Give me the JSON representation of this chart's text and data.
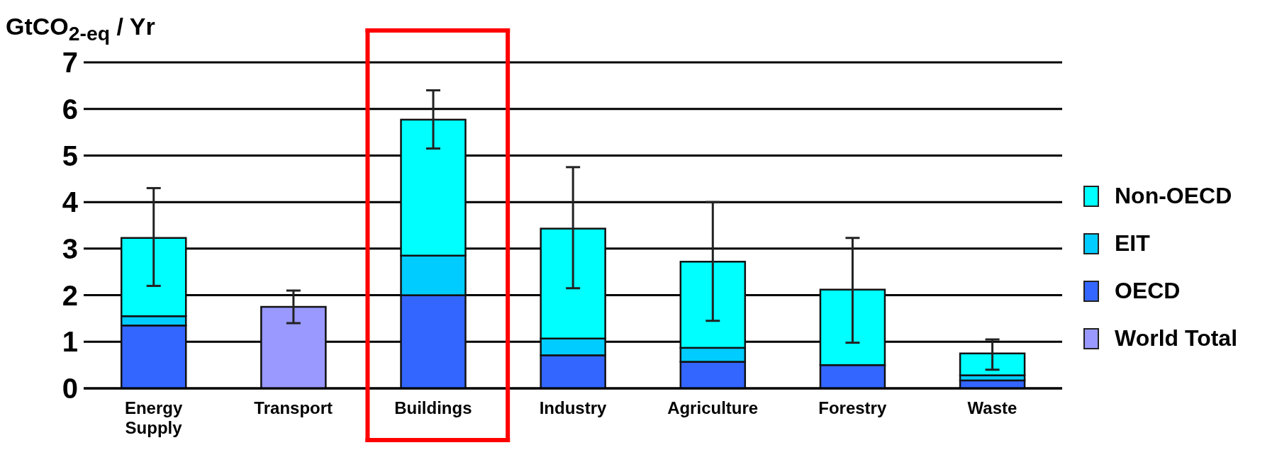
{
  "chart_data": {
    "type": "bar",
    "ylabel": "GtCO$_{2-eq}$ / Yr",
    "categories": [
      "Energy Supply",
      "Transport",
      "Buildings",
      "Industry",
      "Agriculture",
      "Forestry",
      "Waste"
    ],
    "stacked": true,
    "ylim": [
      0,
      7
    ],
    "yticks": [
      0,
      1,
      2,
      3,
      4,
      5,
      6,
      7
    ],
    "grid": "y",
    "legend": "right",
    "series": [
      {
        "name": "World Total",
        "color": "#9999ff",
        "values": [
          null,
          1.75,
          null,
          null,
          null,
          null,
          null
        ],
        "errors": [
          null,
          [
            1.4,
            2.1
          ],
          null,
          null,
          null,
          null,
          null
        ]
      },
      {
        "name": "OECD",
        "color": "#3366ff",
        "values": [
          1.35,
          null,
          2.0,
          0.71,
          0.57,
          0.5,
          0.17
        ]
      },
      {
        "name": "EIT",
        "color": "#00ccff",
        "values": [
          0.2,
          null,
          0.85,
          0.36,
          0.3,
          null,
          0.11
        ]
      },
      {
        "name": "Non-OECD",
        "color": "#00ffff",
        "values": [
          1.68,
          null,
          2.92,
          2.36,
          1.85,
          1.62,
          0.47
        ],
        "errors": [
          [
            2.2,
            4.3
          ],
          null,
          [
            5.15,
            6.4
          ],
          [
            2.15,
            4.75
          ],
          [
            1.45,
            4.0
          ],
          [
            0.98,
            3.23
          ],
          [
            0.4,
            1.05
          ]
        ]
      }
    ]
  }
}
